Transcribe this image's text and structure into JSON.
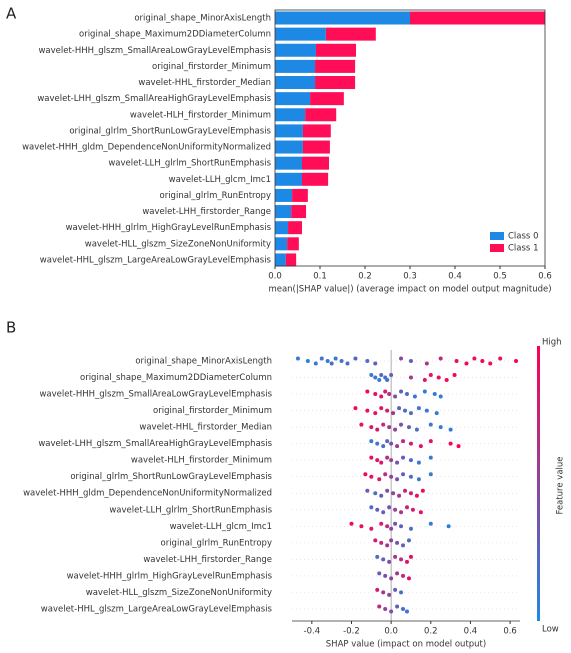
{
  "chart_data": [
    {
      "type": "bar",
      "orientation": "horizontal",
      "stacked": true,
      "panel": "A",
      "categories": [
        "original_shape_MinorAxisLength",
        "original_shape_Maximum2DDiameterColumn",
        "wavelet-HHH_glszm_SmallAreaLowGrayLevelEmphasis",
        "original_firstorder_Minimum",
        "wavelet-HHL_firstorder_Median",
        "wavelet-LHH_glszm_SmallAreaHighGrayLevelEmphasis",
        "wavelet-HLH_firstorder_Minimum",
        "original_glrlm_ShortRunLowGrayLevelEmphasis",
        "wavelet-HHH_gldm_DependenceNonUniformityNormalized",
        "wavelet-LLH_glrlm_ShortRunEmphasis",
        "wavelet-LLH_glcm_Imc1",
        "original_glrlm_RunEntropy",
        "wavelet-LHH_firstorder_Range",
        "wavelet-HHH_glrlm_HighGrayLevelRunEmphasis",
        "wavelet-HLL_glszm_SizeZoneNonUniformity",
        "wavelet-HHL_glszm_LargeAreaLowGrayLevelEmphasis"
      ],
      "series": [
        {
          "name": "Class 0",
          "color": "#1e88e5",
          "values": [
            0.3,
            0.113,
            0.091,
            0.089,
            0.089,
            0.078,
            0.067,
            0.062,
            0.062,
            0.06,
            0.06,
            0.038,
            0.036,
            0.029,
            0.027,
            0.024
          ]
        },
        {
          "name": "Class 1",
          "color": "#ff0d57",
          "values": [
            0.3,
            0.111,
            0.089,
            0.089,
            0.089,
            0.075,
            0.069,
            0.062,
            0.06,
            0.06,
            0.058,
            0.035,
            0.033,
            0.031,
            0.026,
            0.023
          ]
        }
      ],
      "xlabel": "mean(|SHAP value|) (average impact on model output magnitude)",
      "xlim": [
        0,
        0.6
      ],
      "xticks": [
        {
          "value": 0,
          "label": "0.0"
        },
        0.1,
        0.2,
        0.3,
        0.4,
        0.5,
        0.6
      ],
      "legend": "lower right"
    },
    {
      "type": "beeswarm",
      "panel": "B",
      "categories": [
        "original_shape_MinorAxisLength",
        "original_shape_Maximum2DDiameterColumn",
        "wavelet-HHH_glszm_SmallAreaLowGrayLevelEmphasis",
        "original_firstorder_Minimum",
        "wavelet-HHL_firstorder_Median",
        "wavelet-LHH_glszm_SmallAreaHighGrayLevelEmphasis",
        "wavelet-HLH_firstorder_Minimum",
        "original_glrlm_ShortRunLowGrayLevelEmphasis",
        "wavelet-HHH_gldm_DependenceNonUniformityNormalized",
        "wavelet-LLH_glrlm_ShortRunEmphasis",
        "wavelet-LLH_glcm_Imc1",
        "original_glrlm_RunEntropy",
        "wavelet-LHH_firstorder_Range",
        "wavelet-HHH_glrlm_HighGrayLevelRunEmphasis",
        "wavelet-HLL_glszm_SizeZoneNonUniformity",
        "wavelet-HHL_glszm_LargeAreaLowGrayLevelEmphasis"
      ],
      "points": [
        {
          "shap": [
            -0.47,
            -0.42,
            -0.38,
            -0.35,
            -0.32,
            -0.3,
            -0.28,
            -0.25,
            -0.22,
            -0.18,
            -0.12,
            -0.08,
            0.05,
            0.1,
            0.18,
            0.25,
            0.33,
            0.38,
            0.42,
            0.46,
            0.5,
            0.55,
            0.63
          ],
          "feature": [
            0.1,
            0.05,
            0.1,
            0.15,
            0.1,
            0.2,
            0.1,
            0.15,
            0.2,
            0.25,
            0.2,
            0.3,
            0.5,
            0.3,
            0.6,
            0.7,
            0.9,
            0.95,
            0.9,
            1,
            0.95,
            0.9,
            1
          ]
        },
        {
          "shap": [
            -0.1,
            -0.08,
            -0.06,
            -0.05,
            -0.03,
            -0.02,
            0,
            0.1,
            0.17,
            0.2,
            0.24,
            0.28,
            0.32
          ],
          "feature": [
            0.1,
            0.15,
            0.1,
            0.2,
            0.15,
            0.2,
            0.3,
            0.6,
            0.85,
            0.9,
            0.9,
            0.95,
            1
          ]
        },
        {
          "shap": [
            -0.12,
            -0.08,
            -0.05,
            -0.03,
            -0.01,
            0.02,
            0.05,
            0.08,
            0.12,
            0.17,
            0.22,
            0.25
          ],
          "feature": [
            0.95,
            0.9,
            0.85,
            0.8,
            0.7,
            0.4,
            0.3,
            0.2,
            0.15,
            0.1,
            0.1,
            0.05
          ]
        },
        {
          "shap": [
            -0.18,
            -0.12,
            -0.08,
            -0.05,
            -0.02,
            0.01,
            0.04,
            0.07,
            0.1,
            0.14,
            0.18,
            0.23
          ],
          "feature": [
            0.95,
            0.9,
            0.9,
            0.85,
            0.8,
            0.6,
            0.3,
            0.2,
            0.2,
            0.15,
            0.1,
            0.1
          ]
        },
        {
          "shap": [
            -0.15,
            -0.1,
            -0.07,
            -0.04,
            -0.01,
            0.02,
            0.05,
            0.09,
            0.13,
            0.2,
            0.25,
            0.3
          ],
          "feature": [
            0.9,
            0.85,
            0.8,
            0.7,
            0.6,
            0.5,
            0.4,
            0.3,
            0.2,
            0.15,
            0.1,
            0.1
          ]
        },
        {
          "shap": [
            -0.1,
            -0.07,
            -0.04,
            -0.02,
            0,
            0.03,
            0.06,
            0.1,
            0.15,
            0.2,
            0.3,
            0.34
          ],
          "feature": [
            0.1,
            0.15,
            0.2,
            0.25,
            0.4,
            0.6,
            0.7,
            0.8,
            0.85,
            0.9,
            0.95,
            1
          ]
        },
        {
          "shap": [
            -0.1,
            -0.07,
            -0.05,
            -0.02,
            0,
            0.03,
            0.06,
            0.1,
            0.14,
            0.2
          ],
          "feature": [
            0.9,
            0.85,
            0.8,
            0.7,
            0.5,
            0.4,
            0.3,
            0.2,
            0.15,
            0.1
          ]
        },
        {
          "shap": [
            -0.13,
            -0.1,
            -0.06,
            -0.03,
            0,
            0.03,
            0.06,
            0.1,
            0.14,
            0.2
          ],
          "feature": [
            0.95,
            0.9,
            0.8,
            0.7,
            0.5,
            0.4,
            0.3,
            0.2,
            0.15,
            0.1
          ]
        },
        {
          "shap": [
            -0.12,
            -0.08,
            -0.05,
            -0.02,
            0.01,
            0.04,
            0.07,
            0.1,
            0.13,
            0.16
          ],
          "feature": [
            0.3,
            0.2,
            0.3,
            0.4,
            0.5,
            0.6,
            0.7,
            0.8,
            0.85,
            0.9
          ]
        },
        {
          "shap": [
            -0.1,
            -0.07,
            -0.04,
            -0.01,
            0.02,
            0.05,
            0.08,
            0.11,
            0.15
          ],
          "feature": [
            0.2,
            0.3,
            0.3,
            0.4,
            0.5,
            0.6,
            0.7,
            0.8,
            0.9
          ]
        },
        {
          "shap": [
            -0.2,
            -0.15,
            -0.1,
            -0.05,
            -0.02,
            0,
            0.02,
            0.05,
            0.1,
            0.2,
            0.29
          ],
          "feature": [
            0.95,
            0.9,
            0.85,
            0.8,
            0.7,
            0.5,
            0.4,
            0.3,
            0.2,
            0.1,
            0.05
          ]
        },
        {
          "shap": [
            -0.08,
            -0.05,
            -0.02,
            0,
            0.03,
            0.06,
            0.09
          ],
          "feature": [
            0.8,
            0.7,
            0.6,
            0.5,
            0.4,
            0.3,
            0.2
          ]
        },
        {
          "shap": [
            -0.07,
            -0.04,
            -0.01,
            0.02,
            0.05,
            0.08,
            0.1
          ],
          "feature": [
            0.2,
            0.3,
            0.4,
            0.6,
            0.7,
            0.85,
            0.95
          ]
        },
        {
          "shap": [
            -0.06,
            -0.03,
            0,
            0.03,
            0.06,
            0.09
          ],
          "feature": [
            0.3,
            0.4,
            0.5,
            0.6,
            0.7,
            0.9
          ]
        },
        {
          "shap": [
            -0.07,
            -0.04,
            -0.01,
            0.02,
            0.05
          ],
          "feature": [
            0.8,
            0.6,
            0.5,
            0.3,
            0.2
          ]
        },
        {
          "shap": [
            -0.06,
            -0.03,
            0,
            0.03,
            0.06,
            0.08
          ],
          "feature": [
            0.7,
            0.5,
            0.4,
            0.3,
            0.2,
            0.15
          ]
        }
      ],
      "xlabel": "SHAP value (impact on model output)",
      "xlim": [
        -0.5,
        0.65
      ],
      "xticks": [
        -0.4,
        -0.2,
        {
          "value": 0,
          "label": "0.0"
        },
        0.2,
        0.4,
        0.6
      ],
      "colorbar": {
        "low": "Low",
        "high": "High",
        "label": "Feature value",
        "colors": [
          "#1e88e5",
          "#ff0052"
        ]
      }
    }
  ]
}
